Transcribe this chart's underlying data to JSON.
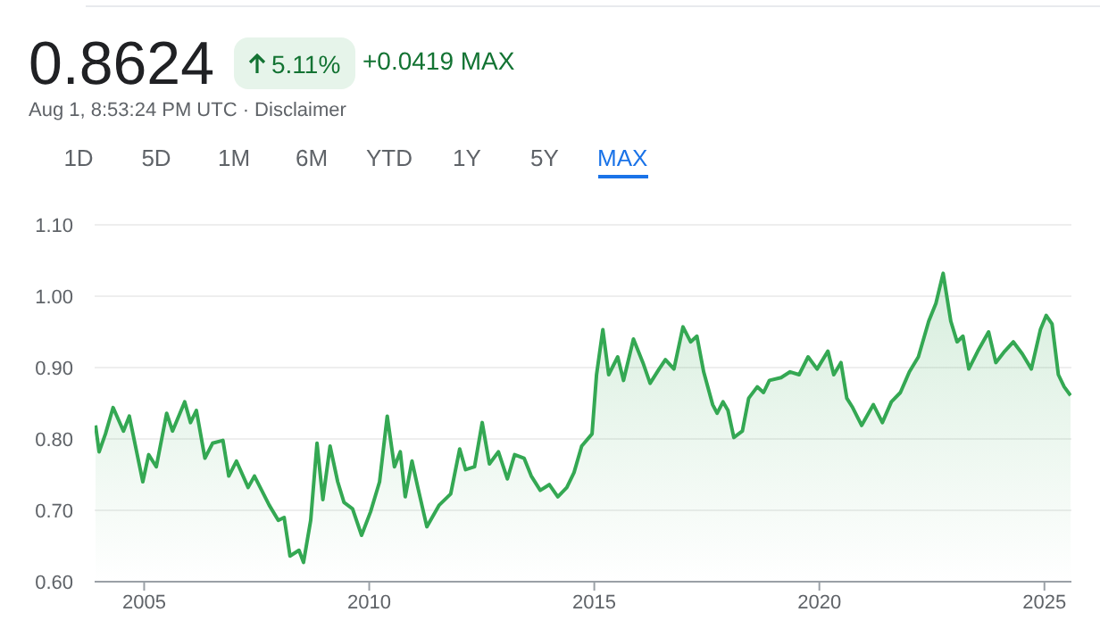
{
  "chart_data": {
    "type": "area",
    "title": "0.8624",
    "annotations": [
      "5.11%",
      "+0.0419 MAX",
      "Aug 1, 8:53:24 PM UTC · Disclaimer",
      "1D",
      "5D",
      "1M",
      "6M",
      "YTD",
      "1Y",
      "5Y",
      "MAX"
    ],
    "x": [
      2003.92,
      2004.0,
      2004.14,
      2004.31,
      2004.54,
      2004.67,
      2004.97,
      2005.1,
      2005.27,
      2005.5,
      2005.63,
      2005.9,
      2006.03,
      2006.16,
      2006.35,
      2006.52,
      2006.75,
      2006.88,
      2007.05,
      2007.31,
      2007.45,
      2007.78,
      2007.98,
      2008.11,
      2008.24,
      2008.44,
      2008.54,
      2008.7,
      2008.84,
      2008.97,
      2009.13,
      2009.3,
      2009.44,
      2009.63,
      2009.83,
      2010.03,
      2010.23,
      2010.4,
      2010.56,
      2010.69,
      2010.8,
      2010.95,
      2011.08,
      2011.28,
      2011.55,
      2011.81,
      2012.01,
      2012.14,
      2012.34,
      2012.51,
      2012.67,
      2012.87,
      2013.07,
      2013.23,
      2013.44,
      2013.6,
      2013.8,
      2014.0,
      2014.19,
      2014.39,
      2014.55,
      2014.72,
      2014.95,
      2015.05,
      2015.19,
      2015.32,
      2015.52,
      2015.65,
      2015.87,
      2016.08,
      2016.24,
      2016.44,
      2016.58,
      2016.77,
      2016.97,
      2017.14,
      2017.28,
      2017.43,
      2017.63,
      2017.73,
      2017.86,
      2017.97,
      2018.1,
      2018.29,
      2018.43,
      2018.62,
      2018.76,
      2018.89,
      2019.15,
      2019.35,
      2019.55,
      2019.75,
      2019.95,
      2020.19,
      2020.32,
      2020.48,
      2020.61,
      2020.74,
      2020.94,
      2021.2,
      2021.4,
      2021.6,
      2021.8,
      2022.0,
      2022.2,
      2022.43,
      2022.59,
      2022.75,
      2022.92,
      2023.06,
      2023.19,
      2023.32,
      2023.52,
      2023.76,
      2023.92,
      2024.12,
      2024.31,
      2024.51,
      2024.71,
      2024.91,
      2025.04,
      2025.17,
      2025.31,
      2025.44,
      2025.58
    ],
    "series": [
      {
        "color": "#34a853",
        "values": [
          0.819,
          0.782,
          0.807,
          0.844,
          0.811,
          0.832,
          0.74,
          0.778,
          0.761,
          0.836,
          0.811,
          0.852,
          0.823,
          0.84,
          0.773,
          0.794,
          0.798,
          0.748,
          0.769,
          0.732,
          0.748,
          0.707,
          0.686,
          0.69,
          0.636,
          0.644,
          0.627,
          0.686,
          0.794,
          0.715,
          0.79,
          0.74,
          0.711,
          0.702,
          0.665,
          0.698,
          0.74,
          0.832,
          0.761,
          0.782,
          0.719,
          0.769,
          0.732,
          0.677,
          0.707,
          0.723,
          0.786,
          0.757,
          0.761,
          0.823,
          0.765,
          0.782,
          0.744,
          0.778,
          0.773,
          0.748,
          0.728,
          0.736,
          0.719,
          0.732,
          0.753,
          0.79,
          0.807,
          0.89,
          0.953,
          0.89,
          0.915,
          0.882,
          0.94,
          0.907,
          0.878,
          0.898,
          0.911,
          0.898,
          0.957,
          0.936,
          0.944,
          0.894,
          0.848,
          0.836,
          0.852,
          0.84,
          0.802,
          0.811,
          0.857,
          0.873,
          0.865,
          0.882,
          0.886,
          0.894,
          0.89,
          0.915,
          0.898,
          0.923,
          0.89,
          0.907,
          0.857,
          0.844,
          0.819,
          0.848,
          0.823,
          0.852,
          0.865,
          0.894,
          0.915,
          0.965,
          0.99,
          1.032,
          0.965,
          0.936,
          0.944,
          0.898,
          0.923,
          0.95,
          0.907,
          0.923,
          0.936,
          0.919,
          0.898,
          0.953,
          0.973,
          0.961,
          0.89,
          0.873,
          0.861
        ]
      }
    ],
    "xlim": [
      2003.9,
      2025.6
    ],
    "xticks": [
      2005,
      2010,
      2015,
      2020,
      2025
    ],
    "ylim": [
      0.6,
      1.1
    ],
    "yticks": [
      {
        "value": 0.6,
        "label": "0.60"
      },
      {
        "value": 0.7,
        "label": "0.70"
      },
      {
        "value": 0.8,
        "label": "0.80"
      },
      {
        "value": 0.9,
        "label": "0.90"
      },
      {
        "value": 1.0,
        "label": "1.00"
      },
      {
        "value": 1.1,
        "label": "1.10"
      }
    ],
    "grid": "y",
    "marker": "none",
    "line_style": "solid"
  }
}
